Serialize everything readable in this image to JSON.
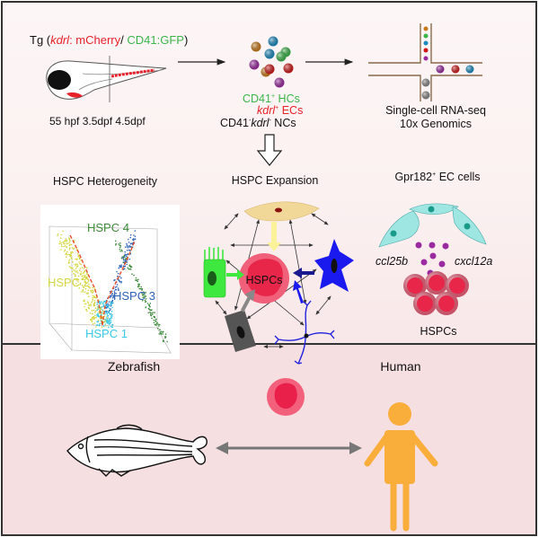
{
  "colors": {
    "top_bg": "#fcf4f4",
    "middle_bg": "#f8e8e9",
    "bottom_bg": "#f5dfe1",
    "red": "#e8202a",
    "green": "#3cb44a",
    "hspc_red": "#e8264a",
    "human_orange": "#f9ae3b",
    "arrow_gray": "#777777"
  },
  "top": {
    "tg_prefix": "Tg (",
    "tg_kdrl": "kdrl",
    "tg_mcherry": ": mCherry",
    "tg_slash": "/ ",
    "tg_gfp": "CD41:GFP",
    "tg_suffix": ")",
    "timepoints": "55 hpf  3.5dpf  4.5dpf",
    "hc_label": "CD41",
    "hc_sup": "+",
    "hc_suffix": " HCs",
    "ec_label": "kdrl",
    "ec_sup": "+",
    "ec_suffix": " ECs",
    "nc_label": "CD41",
    "nc_sup1": "-",
    "nc_mid": "kdrl",
    "nc_sup2": "-",
    "nc_suffix": " NCs",
    "seq_line1": "Single-cell RNA-seq",
    "seq_line2": "10x Genomics"
  },
  "middle": {
    "heterogeneity_title": "HSPC Heterogeneity",
    "clusters": [
      "HSPC 4",
      "HSPC 2",
      "HSPC 3",
      "HSPC 1"
    ],
    "cluster_colors": [
      "#3d8a3a",
      "#d4d640",
      "#2e62b8",
      "#38c8e6"
    ],
    "expansion_title": "HSPC Expansion",
    "expansion_center": "HSPCs",
    "ec_title": "Gpr182",
    "ec_sup": "+",
    "ec_suffix": " EC cells",
    "chemokine_left": "ccl25b",
    "chemokine_right": "cxcl12a",
    "ec_hspc_label": "HSPCs"
  },
  "bottom": {
    "zebrafish_label": "Zebrafish",
    "human_label": "Human"
  }
}
